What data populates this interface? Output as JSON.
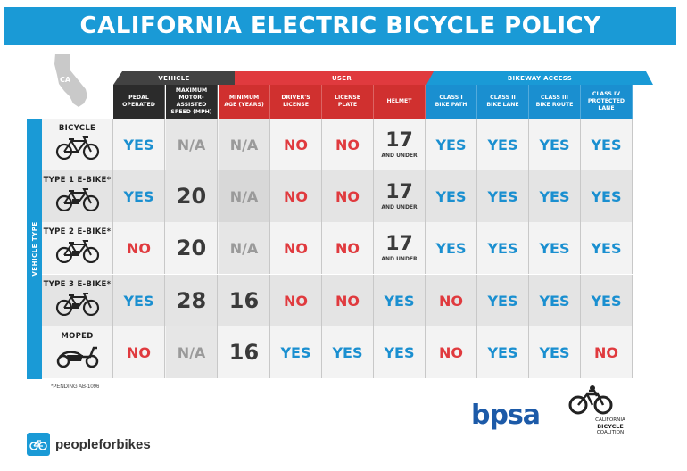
{
  "title": "CALIFORNIA ELECTRIC BICYCLE POLICY",
  "state_abbr": "CA",
  "groups": {
    "vehicle": "VEHICLE",
    "user": "USER",
    "bikeway": "BIKEWAY ACCESS"
  },
  "columns": [
    "PEDAL\nOPERATED",
    "MAXIMUM\nMOTOR-ASSISTED\nSPEED (MPH)",
    "MINIMUM\nAGE (YEARS)",
    "DRIVER'S\nLICENSE",
    "LICENSE\nPLATE",
    "HELMET",
    "CLASS I\nBIKE PATH",
    "CLASS II\nBIKE LANE",
    "CLASS III\nBIKE ROUTE",
    "CLASS IV\nPROTECTED LANE"
  ],
  "side_label": "VEHICLE TYPE",
  "rows": [
    {
      "name": "BICYCLE",
      "icon": "bicycle-icon",
      "values": [
        "YES",
        "N/A",
        "N/A",
        "NO",
        "NO",
        "17",
        "YES",
        "YES",
        "YES",
        "YES"
      ],
      "helmet_sub": "AND UNDER"
    },
    {
      "name": "TYPE 1 E-BIKE*",
      "icon": "ebike-icon",
      "values": [
        "YES",
        "20",
        "N/A",
        "NO",
        "NO",
        "17",
        "YES",
        "YES",
        "YES",
        "YES"
      ],
      "helmet_sub": "AND UNDER"
    },
    {
      "name": "TYPE 2 E-BIKE*",
      "icon": "ebike-icon",
      "values": [
        "NO",
        "20",
        "N/A",
        "NO",
        "NO",
        "17",
        "YES",
        "YES",
        "YES",
        "YES"
      ],
      "helmet_sub": "AND UNDER"
    },
    {
      "name": "TYPE 3 E-BIKE*",
      "icon": "ebike-icon",
      "values": [
        "YES",
        "28",
        "16",
        "NO",
        "NO",
        "YES",
        "NO",
        "YES",
        "YES",
        "YES"
      ],
      "helmet_sub": ""
    },
    {
      "name": "MOPED",
      "icon": "moped-icon",
      "values": [
        "NO",
        "N/A",
        "16",
        "YES",
        "YES",
        "YES",
        "NO",
        "YES",
        "YES",
        "NO"
      ],
      "helmet_sub": ""
    }
  ],
  "footnote": "*PENDING AB-1096",
  "logos": {
    "peopleforbikes": "peopleforbikes",
    "bpsa": "bpsa",
    "cbc_line1": "CALIFORNIA",
    "cbc_line2": "BICYCLE",
    "cbc_line3": "COALITION"
  },
  "colors": {
    "blue": "#1a9ad6",
    "red": "#e03a3e",
    "dark": "#2b2b2b"
  }
}
